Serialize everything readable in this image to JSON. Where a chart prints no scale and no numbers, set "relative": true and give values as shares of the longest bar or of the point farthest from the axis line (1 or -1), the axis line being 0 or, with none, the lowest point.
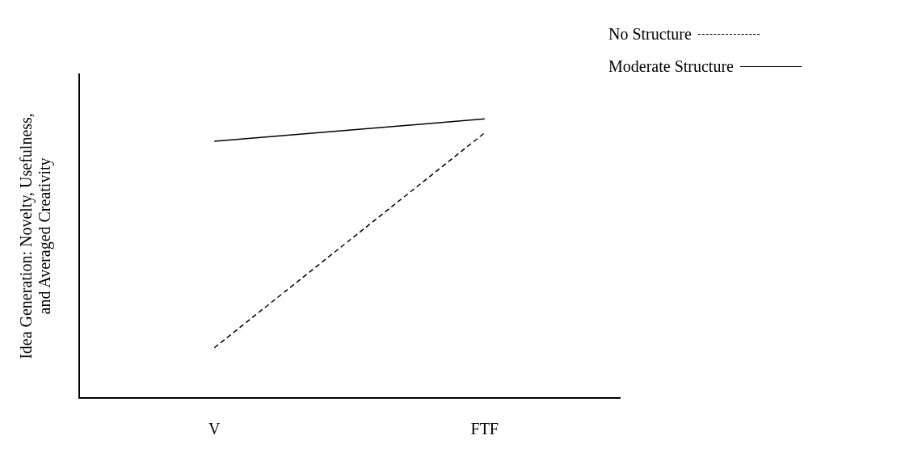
{
  "chart_data": {
    "type": "line",
    "relative": true,
    "ylabel": "Idea Generation: Novelty, Usefulness,\nand Averaged Creativity",
    "categories": [
      "V",
      "FTF"
    ],
    "legend": "top right",
    "grid": false,
    "marker": "none",
    "series": [
      {
        "name": "No Structure",
        "color": "#000000",
        "line_style": "dashed",
        "values": [
          0.18,
          0.95
        ]
      },
      {
        "name": "Moderate Structure",
        "color": "#000000",
        "line_style": "solid",
        "values": [
          0.92,
          1
        ]
      }
    ]
  }
}
